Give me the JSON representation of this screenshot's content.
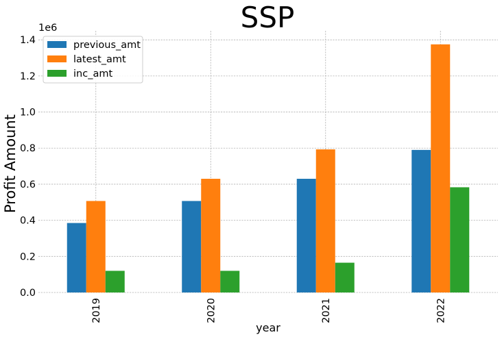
{
  "chart_data": {
    "type": "bar",
    "title": "SSP",
    "xlabel": "year",
    "ylabel": "Profit Amount",
    "y_offset_label": "1e6",
    "categories": [
      "2019",
      "2020",
      "2021",
      "2022"
    ],
    "series": [
      {
        "name": "previous_amt",
        "color": "#1f77b4",
        "values": [
          385000,
          507000,
          630000,
          790000
        ]
      },
      {
        "name": "latest_amt",
        "color": "#ff7f0e",
        "values": [
          507000,
          630000,
          793000,
          1375000
        ]
      },
      {
        "name": "inc_amt",
        "color": "#2ca02c",
        "values": [
          120000,
          120000,
          165000,
          583000
        ]
      }
    ],
    "ylim": [
      0,
      1450000
    ],
    "yticks": [
      0,
      200000,
      400000,
      600000,
      800000,
      1000000,
      1200000,
      1400000
    ],
    "ytick_labels": [
      "0.0",
      "0.2",
      "0.4",
      "0.6",
      "0.8",
      "1.0",
      "1.2",
      "1.4"
    ],
    "grid": true,
    "legend_position": "top-left"
  }
}
